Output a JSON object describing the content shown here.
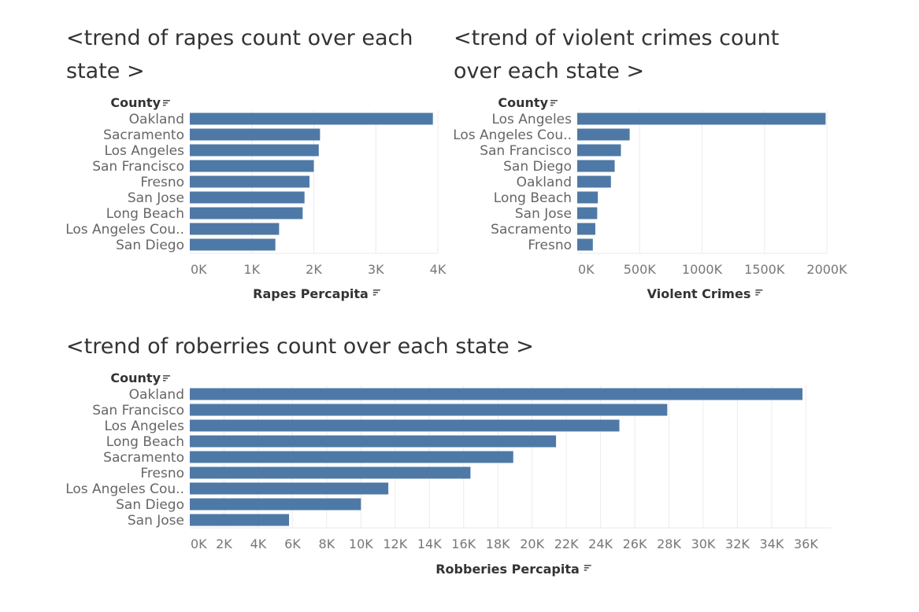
{
  "chart_data": [
    {
      "type": "bar",
      "orientation": "horizontal",
      "title": "<trend of rapes count over each state >",
      "dim_label": "County",
      "xlabel": "Rapes Percapita",
      "categories": [
        "Oakland",
        "Sacramento",
        "Los Angeles",
        "San Francisco",
        "Fresno",
        "San Jose",
        "Long Beach",
        "Los Angeles Cou..",
        "San Diego"
      ],
      "values": [
        3920,
        2100,
        2080,
        2000,
        1930,
        1850,
        1820,
        1440,
        1380
      ],
      "xlim": [
        0,
        4000
      ],
      "ticks": [
        0,
        1000,
        2000,
        3000,
        4000
      ],
      "tick_labels": [
        "0K",
        "1K",
        "2K",
        "3K",
        "4K"
      ],
      "color": "#4e79a7"
    },
    {
      "type": "bar",
      "orientation": "horizontal",
      "title": "<trend of violent crimes count over each state >",
      "dim_label": "County",
      "xlabel": "Violent Crimes",
      "categories": [
        "Los Angeles",
        "Los Angeles Cou..",
        "San Francisco",
        "San Diego",
        "Oakland",
        "Long Beach",
        "San Jose",
        "Sacramento",
        "Fresno"
      ],
      "values": [
        1990000,
        420000,
        350000,
        300000,
        270000,
        165000,
        160000,
        145000,
        125000
      ],
      "xlim": [
        0,
        2000000
      ],
      "ticks": [
        0,
        500000,
        1000000,
        1500000,
        2000000
      ],
      "tick_labels": [
        "0K",
        "500K",
        "1000K",
        "1500K",
        "2000K"
      ],
      "color": "#4e79a7"
    },
    {
      "type": "bar",
      "orientation": "horizontal",
      "title": "<trend of roberries count over each state >",
      "dim_label": "County",
      "xlabel": "Robberies Percapita",
      "categories": [
        "Oakland",
        "San Francisco",
        "Los Angeles",
        "Long Beach",
        "Sacramento",
        "Fresno",
        "Los Angeles Cou..",
        "San Diego",
        "San Jose"
      ],
      "values": [
        35800,
        27900,
        25100,
        21400,
        18900,
        16400,
        11600,
        10000,
        5800
      ],
      "xlim": [
        0,
        37500
      ],
      "ticks": [
        0,
        2000,
        4000,
        6000,
        8000,
        10000,
        12000,
        14000,
        16000,
        18000,
        20000,
        22000,
        24000,
        26000,
        28000,
        30000,
        32000,
        34000,
        36000
      ],
      "tick_labels": [
        "0K",
        "2K",
        "4K",
        "6K",
        "8K",
        "10K",
        "12K",
        "14K",
        "16K",
        "18K",
        "20K",
        "22K",
        "24K",
        "26K",
        "28K",
        "30K",
        "32K",
        "34K",
        "36K"
      ],
      "color": "#4e79a7"
    }
  ]
}
